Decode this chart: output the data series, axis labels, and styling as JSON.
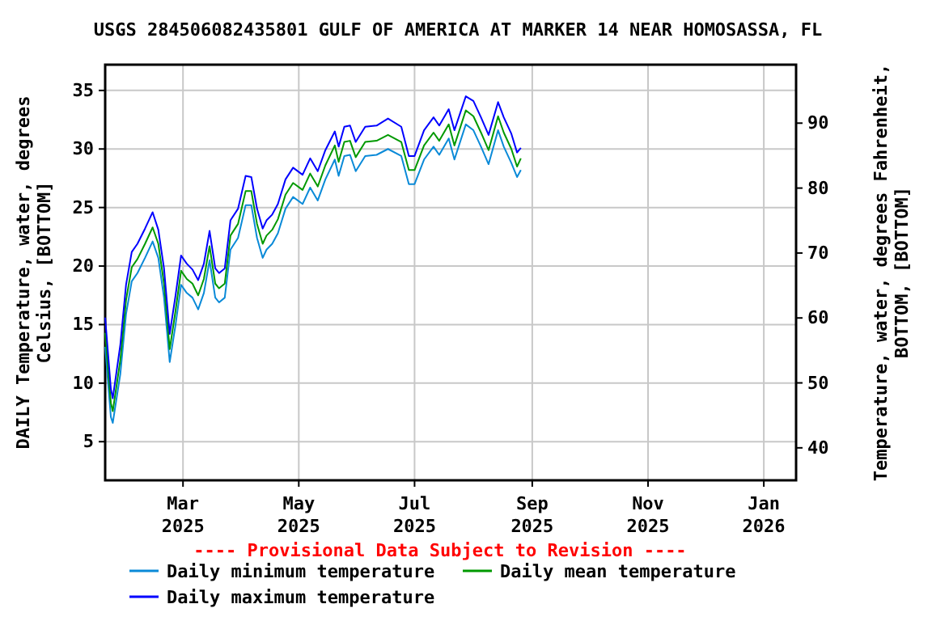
{
  "chart_data": {
    "type": "line",
    "title": "USGS 284506082435801 GULF OF AMERICA AT MARKER 14 NEAR HOMOSASSA, FL",
    "ylabel": "DAILY Temperature, water, degrees Celsius, [BOTTOM]",
    "y2label": "Temperature, water, degrees Fahrenheit, BOTTOM, [BOTTOM]",
    "annotations": [
      "---- Provisional Data Subject to Revision ----"
    ],
    "x": [
      "2025-01-19",
      "2025-01-22",
      "2025-01-23",
      "2025-01-27",
      "2025-01-30",
      "2025-02-02",
      "2025-02-05",
      "2025-02-09",
      "2025-02-13",
      "2025-02-16",
      "2025-02-19",
      "2025-02-22",
      "2025-02-25",
      "2025-02-28",
      "2025-03-03",
      "2025-03-06",
      "2025-03-09",
      "2025-03-12",
      "2025-03-15",
      "2025-03-18",
      "2025-03-20",
      "2025-03-23",
      "2025-03-26",
      "2025-03-30",
      "2025-04-03",
      "2025-04-06",
      "2025-04-09",
      "2025-04-12",
      "2025-04-14",
      "2025-04-17",
      "2025-04-20",
      "2025-04-24",
      "2025-04-28",
      "2025-05-03",
      "2025-05-07",
      "2025-05-11",
      "2025-05-15",
      "2025-05-20",
      "2025-05-22",
      "2025-05-25",
      "2025-05-28",
      "2025-05-31",
      "2025-06-05",
      "2025-06-11",
      "2025-06-17",
      "2025-06-24",
      "2025-06-28",
      "2025-07-01",
      "2025-07-06",
      "2025-07-11",
      "2025-07-14",
      "2025-07-19",
      "2025-07-22",
      "2025-07-28",
      "2025-08-01",
      "2025-08-05",
      "2025-08-09",
      "2025-08-14",
      "2025-08-17",
      "2025-08-21",
      "2025-08-24",
      "2025-08-26"
    ],
    "series": [
      {
        "name": "Daily minimum temperature",
        "color": "#0a8ad8",
        "values": [
          13.1,
          7.1,
          6.6,
          10.8,
          15.9,
          18.7,
          19.4,
          20.7,
          22.1,
          20.7,
          17.3,
          11.8,
          14.9,
          18.4,
          17.7,
          17.3,
          16.3,
          17.7,
          20.5,
          17.3,
          16.9,
          17.3,
          21.4,
          22.4,
          25.2,
          25.2,
          22.4,
          20.7,
          21.4,
          21.9,
          22.8,
          24.9,
          25.9,
          25.3,
          26.7,
          25.6,
          27.4,
          29.1,
          27.7,
          29.4,
          29.5,
          28.1,
          29.4,
          29.5,
          30,
          29.4,
          27,
          27,
          29.1,
          30.2,
          29.5,
          30.9,
          29.1,
          32.1,
          31.6,
          30.2,
          28.7,
          31.6,
          30.2,
          28.8,
          27.6,
          28.2
        ]
      },
      {
        "name": "Daily mean temperature",
        "color": "#009900",
        "values": [
          14.3,
          8.3,
          7.6,
          12,
          17.1,
          19.9,
          20.6,
          21.9,
          23.3,
          21.9,
          18.5,
          12.9,
          16.1,
          19.6,
          18.9,
          18.5,
          17.5,
          18.9,
          21.7,
          18.5,
          18.1,
          18.5,
          22.6,
          23.6,
          26.4,
          26.4,
          23.6,
          21.9,
          22.6,
          23.1,
          24,
          26.1,
          27.1,
          26.5,
          27.9,
          26.8,
          28.6,
          30.3,
          28.9,
          30.6,
          30.7,
          29.3,
          30.6,
          30.7,
          31.2,
          30.6,
          28.2,
          28.2,
          30.3,
          31.4,
          30.7,
          32.1,
          30.3,
          33.3,
          32.8,
          31.4,
          29.9,
          32.8,
          31.4,
          30,
          28.5,
          29.2
        ]
      },
      {
        "name": "Daily maximum temperature",
        "color": "#0000ff",
        "values": [
          15.6,
          9.5,
          8.7,
          13.3,
          18.4,
          21.2,
          21.9,
          23.2,
          24.6,
          23.1,
          19.8,
          14.2,
          17.4,
          20.9,
          20.2,
          19.7,
          18.8,
          20.2,
          23,
          19.8,
          19.4,
          19.8,
          23.9,
          24.9,
          27.7,
          27.6,
          24.9,
          23.2,
          23.9,
          24.4,
          25.3,
          27.4,
          28.4,
          27.8,
          29.2,
          28.1,
          29.9,
          31.5,
          30.2,
          31.9,
          32,
          30.6,
          31.9,
          32,
          32.6,
          31.9,
          29.4,
          29.4,
          31.6,
          32.7,
          32,
          33.4,
          31.6,
          34.5,
          34.1,
          32.7,
          31.2,
          34,
          32.7,
          31.3,
          29.7,
          30.1
        ]
      }
    ],
    "xlim": [
      "2025-01-19",
      "2026-01-18"
    ],
    "xticks": [
      {
        "value": "2025-03-01",
        "label": "Mar 2025"
      },
      {
        "value": "2025-05-01",
        "label": "May 2025"
      },
      {
        "value": "2025-07-01",
        "label": "Jul 2025"
      },
      {
        "value": "2025-09-01",
        "label": "Sep 2025"
      },
      {
        "value": "2025-11-01",
        "label": "Nov 2025"
      },
      {
        "value": "2026-01-01",
        "label": "Jan 2026"
      }
    ],
    "ylim": [
      1.7,
      37.2
    ],
    "yticks": [
      5,
      10,
      15,
      20,
      25,
      30,
      35
    ],
    "y2lim": [
      35,
      99
    ],
    "y2ticks": [
      40,
      50,
      60,
      70,
      80,
      90
    ],
    "grid": true,
    "legend": "bottom"
  }
}
